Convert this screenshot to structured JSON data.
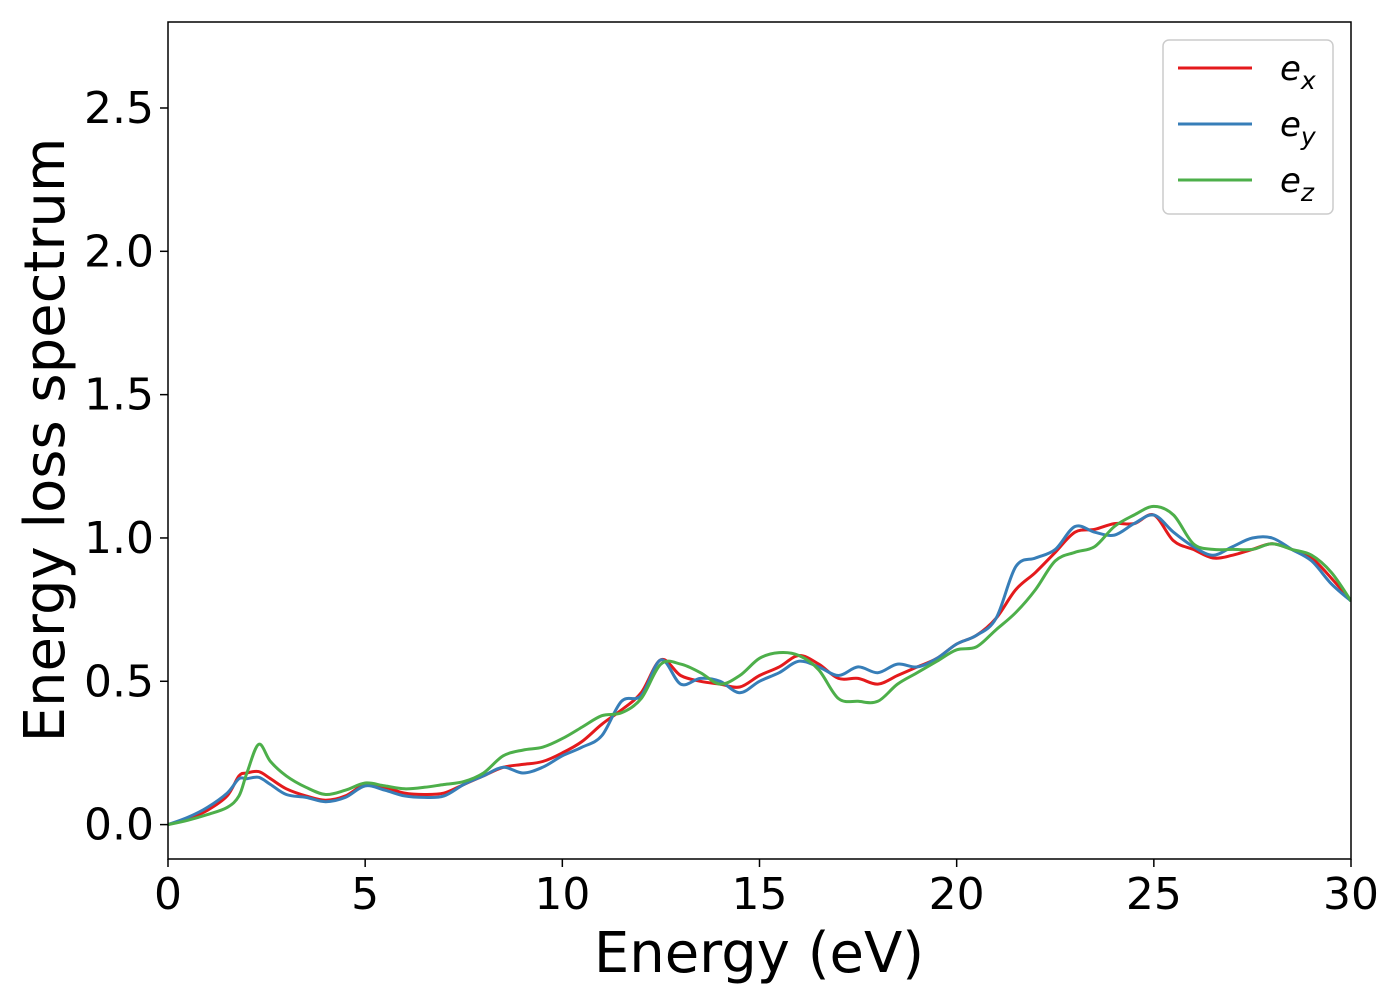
{
  "chart_data": {
    "type": "line",
    "title": "",
    "xlabel": "Energy (eV)",
    "ylabel": "Energy loss spectrum",
    "xlim": [
      0,
      30
    ],
    "ylim": [
      -0.12,
      2.8
    ],
    "xticks": [
      0,
      5,
      10,
      15,
      20,
      25,
      30
    ],
    "yticks": [
      0.0,
      0.5,
      1.0,
      1.5,
      2.0,
      2.5
    ],
    "xtick_labels": [
      "0",
      "5",
      "10",
      "15",
      "20",
      "25",
      "30"
    ],
    "ytick_labels": [
      "0.0",
      "0.5",
      "1.0",
      "1.5",
      "2.0",
      "2.5"
    ],
    "grid": false,
    "legend_position": "top-right",
    "series": [
      {
        "name": "e",
        "subscript": "x",
        "color": "#e41a1c",
        "points": [
          [
            0,
            0.0
          ],
          [
            0.5,
            0.02
          ],
          [
            1,
            0.05
          ],
          [
            1.5,
            0.1
          ],
          [
            1.8,
            0.17
          ],
          [
            2.0,
            0.18
          ],
          [
            2.3,
            0.185
          ],
          [
            2.6,
            0.16
          ],
          [
            3.0,
            0.125
          ],
          [
            3.5,
            0.1
          ],
          [
            4.0,
            0.085
          ],
          [
            4.5,
            0.1
          ],
          [
            5.0,
            0.14
          ],
          [
            5.5,
            0.13
          ],
          [
            6.0,
            0.11
          ],
          [
            6.5,
            0.105
          ],
          [
            7.0,
            0.11
          ],
          [
            7.5,
            0.14
          ],
          [
            8.0,
            0.17
          ],
          [
            8.5,
            0.2
          ],
          [
            9.0,
            0.21
          ],
          [
            9.5,
            0.22
          ],
          [
            10.0,
            0.25
          ],
          [
            10.5,
            0.29
          ],
          [
            11.0,
            0.35
          ],
          [
            11.5,
            0.4
          ],
          [
            12.0,
            0.46
          ],
          [
            12.5,
            0.575
          ],
          [
            13.0,
            0.52
          ],
          [
            13.5,
            0.5
          ],
          [
            14.0,
            0.49
          ],
          [
            14.5,
            0.48
          ],
          [
            15.0,
            0.52
          ],
          [
            15.5,
            0.55
          ],
          [
            16.0,
            0.59
          ],
          [
            16.5,
            0.56
          ],
          [
            17.0,
            0.51
          ],
          [
            17.5,
            0.51
          ],
          [
            18.0,
            0.49
          ],
          [
            18.5,
            0.52
          ],
          [
            19.0,
            0.55
          ],
          [
            19.5,
            0.58
          ],
          [
            20.0,
            0.63
          ],
          [
            20.5,
            0.66
          ],
          [
            21.0,
            0.72
          ],
          [
            21.5,
            0.82
          ],
          [
            22.0,
            0.88
          ],
          [
            22.5,
            0.95
          ],
          [
            23.0,
            1.02
          ],
          [
            23.5,
            1.03
          ],
          [
            24.0,
            1.05
          ],
          [
            24.5,
            1.05
          ],
          [
            25.0,
            1.08
          ],
          [
            25.5,
            0.99
          ],
          [
            26.0,
            0.96
          ],
          [
            26.5,
            0.93
          ],
          [
            27.0,
            0.94
          ],
          [
            27.5,
            0.96
          ],
          [
            28.0,
            0.98
          ],
          [
            28.5,
            0.96
          ],
          [
            29.0,
            0.93
          ],
          [
            29.5,
            0.86
          ],
          [
            30.0,
            0.78
          ]
        ]
      },
      {
        "name": "e",
        "subscript": "y",
        "color": "#377eb8",
        "points": [
          [
            0,
            0.0
          ],
          [
            0.5,
            0.025
          ],
          [
            1,
            0.06
          ],
          [
            1.5,
            0.11
          ],
          [
            1.8,
            0.16
          ],
          [
            2.0,
            0.16
          ],
          [
            2.3,
            0.165
          ],
          [
            2.6,
            0.14
          ],
          [
            3.0,
            0.105
          ],
          [
            3.5,
            0.095
          ],
          [
            4.0,
            0.08
          ],
          [
            4.5,
            0.095
          ],
          [
            5.0,
            0.135
          ],
          [
            5.5,
            0.12
          ],
          [
            6.0,
            0.1
          ],
          [
            6.5,
            0.095
          ],
          [
            7.0,
            0.1
          ],
          [
            7.5,
            0.14
          ],
          [
            8.0,
            0.17
          ],
          [
            8.5,
            0.2
          ],
          [
            9.0,
            0.18
          ],
          [
            9.5,
            0.2
          ],
          [
            10.0,
            0.24
          ],
          [
            10.5,
            0.27
          ],
          [
            11.0,
            0.31
          ],
          [
            11.5,
            0.43
          ],
          [
            12.0,
            0.45
          ],
          [
            12.5,
            0.575
          ],
          [
            13.0,
            0.49
          ],
          [
            13.5,
            0.51
          ],
          [
            14.0,
            0.5
          ],
          [
            14.5,
            0.46
          ],
          [
            15.0,
            0.5
          ],
          [
            15.5,
            0.53
          ],
          [
            16.0,
            0.57
          ],
          [
            16.5,
            0.55
          ],
          [
            17.0,
            0.52
          ],
          [
            17.5,
            0.55
          ],
          [
            18.0,
            0.53
          ],
          [
            18.5,
            0.56
          ],
          [
            19.0,
            0.55
          ],
          [
            19.5,
            0.58
          ],
          [
            20.0,
            0.63
          ],
          [
            20.5,
            0.66
          ],
          [
            21.0,
            0.72
          ],
          [
            21.5,
            0.9
          ],
          [
            22.0,
            0.93
          ],
          [
            22.5,
            0.96
          ],
          [
            23.0,
            1.04
          ],
          [
            23.5,
            1.02
          ],
          [
            24.0,
            1.01
          ],
          [
            24.5,
            1.05
          ],
          [
            25.0,
            1.08
          ],
          [
            25.5,
            1.02
          ],
          [
            26.0,
            0.97
          ],
          [
            26.5,
            0.94
          ],
          [
            27.0,
            0.97
          ],
          [
            27.5,
            1.0
          ],
          [
            28.0,
            1.0
          ],
          [
            28.5,
            0.96
          ],
          [
            29.0,
            0.92
          ],
          [
            29.5,
            0.84
          ],
          [
            30.0,
            0.78
          ]
        ]
      },
      {
        "name": "e",
        "subscript": "z",
        "color": "#4daf4a",
        "points": [
          [
            0,
            0.0
          ],
          [
            0.5,
            0.015
          ],
          [
            1,
            0.035
          ],
          [
            1.5,
            0.06
          ],
          [
            1.8,
            0.1
          ],
          [
            2.0,
            0.18
          ],
          [
            2.3,
            0.28
          ],
          [
            2.6,
            0.22
          ],
          [
            3.0,
            0.17
          ],
          [
            3.5,
            0.13
          ],
          [
            4.0,
            0.105
          ],
          [
            4.5,
            0.12
          ],
          [
            5.0,
            0.145
          ],
          [
            5.5,
            0.135
          ],
          [
            6.0,
            0.125
          ],
          [
            6.5,
            0.13
          ],
          [
            7.0,
            0.14
          ],
          [
            7.5,
            0.15
          ],
          [
            8.0,
            0.18
          ],
          [
            8.5,
            0.24
          ],
          [
            9.0,
            0.26
          ],
          [
            9.5,
            0.27
          ],
          [
            10.0,
            0.3
          ],
          [
            10.5,
            0.34
          ],
          [
            11.0,
            0.38
          ],
          [
            11.5,
            0.39
          ],
          [
            12.0,
            0.44
          ],
          [
            12.5,
            0.56
          ],
          [
            13.0,
            0.56
          ],
          [
            13.5,
            0.53
          ],
          [
            14.0,
            0.49
          ],
          [
            14.5,
            0.52
          ],
          [
            15.0,
            0.58
          ],
          [
            15.5,
            0.6
          ],
          [
            16.0,
            0.59
          ],
          [
            16.5,
            0.54
          ],
          [
            17.0,
            0.44
          ],
          [
            17.5,
            0.43
          ],
          [
            18.0,
            0.43
          ],
          [
            18.5,
            0.49
          ],
          [
            19.0,
            0.53
          ],
          [
            19.5,
            0.57
          ],
          [
            20.0,
            0.61
          ],
          [
            20.5,
            0.62
          ],
          [
            21.0,
            0.68
          ],
          [
            21.5,
            0.74
          ],
          [
            22.0,
            0.82
          ],
          [
            22.5,
            0.92
          ],
          [
            23.0,
            0.95
          ],
          [
            23.5,
            0.97
          ],
          [
            24.0,
            1.04
          ],
          [
            24.5,
            1.08
          ],
          [
            25.0,
            1.11
          ],
          [
            25.5,
            1.08
          ],
          [
            26.0,
            0.98
          ],
          [
            26.5,
            0.96
          ],
          [
            27.0,
            0.96
          ],
          [
            27.5,
            0.96
          ],
          [
            28.0,
            0.98
          ],
          [
            28.5,
            0.96
          ],
          [
            29.0,
            0.94
          ],
          [
            29.5,
            0.88
          ],
          [
            30.0,
            0.78
          ]
        ]
      }
    ]
  }
}
